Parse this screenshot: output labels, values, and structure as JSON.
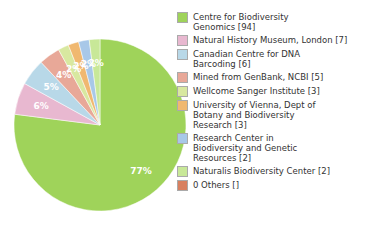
{
  "chart_data": {
    "type": "pie",
    "categories": [
      "Centre for Biodiversity\nGenomics [94]",
      "Natural History Museum, London [7]",
      "Canadian Centre for DNA\nBarcoding [6]",
      "Mined from GenBank, NCBI [5]",
      "Wellcome Sanger Institute [3]",
      "University of Vienna, Dept of\nBotany and Biodiversity\nResearch [3]",
      "Research Center in\nBiodiversity and Genetic\nResources [2]",
      "Naturalis Biodiversity Center [2]",
      "0 Others []"
    ],
    "values": [
      77,
      6,
      5,
      4,
      2,
      2,
      2,
      2,
      0
    ],
    "value_labels": [
      "77%",
      "6%",
      "5%",
      "4%",
      "2%",
      "2%",
      "2%",
      "2%",
      null
    ],
    "colors": [
      "#9fd35a",
      "#e8b8d0",
      "#b8d8e8",
      "#e8a898",
      "#d8e8a0",
      "#f0b870",
      "#a8c8e8",
      "#c8e898",
      "#d88060"
    ],
    "data_labels": true,
    "legend": "right"
  }
}
